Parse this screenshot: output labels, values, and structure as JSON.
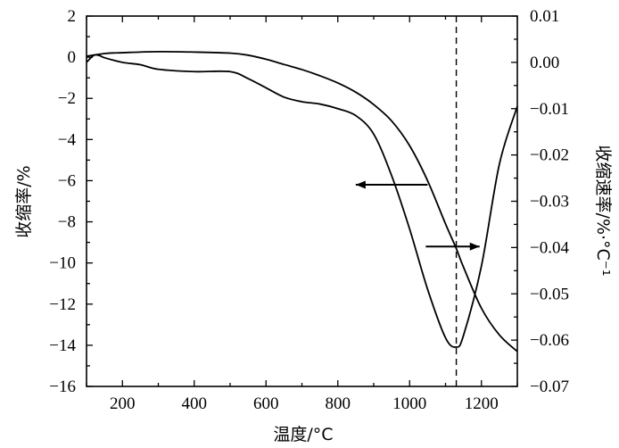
{
  "chart_data": {
    "type": "line",
    "xlabel": "温度/°C",
    "ylabel_left": "收缩率/%",
    "ylabel_right": "收缩速率/%·°C⁻¹",
    "xlim": [
      100,
      1300
    ],
    "ylim_left": [
      -16,
      2
    ],
    "ylim_right": [
      -0.07,
      0.01
    ],
    "x_ticks": [
      200,
      400,
      600,
      800,
      1000,
      1200
    ],
    "x_tick_labels": [
      "200",
      "400",
      "600",
      "800",
      "1000",
      "1200"
    ],
    "y_left_ticks": [
      2,
      0,
      -2,
      -4,
      -6,
      -8,
      -10,
      -12,
      -14,
      -16
    ],
    "y_left_tick_labels": [
      "2",
      "0",
      "−2",
      "−4",
      "−6",
      "−8",
      "−10",
      "−12",
      "−14",
      "−16"
    ],
    "y_right_ticks": [
      0.01,
      0.0,
      -0.01,
      -0.02,
      -0.03,
      -0.04,
      -0.05,
      -0.06,
      -0.07
    ],
    "y_right_tick_labels": [
      "0.01",
      "0.00",
      "−0.01",
      "−0.02",
      "−0.03",
      "−0.04",
      "−0.05",
      "−0.06",
      "−0.07"
    ],
    "reference_line_x": 1130,
    "series": [
      {
        "axis": "left",
        "x": [
          100,
          150,
          200,
          300,
          400,
          500,
          550,
          600,
          650,
          700,
          750,
          800,
          850,
          900,
          950,
          1000,
          1050,
          1100,
          1130,
          1150,
          1200,
          1250,
          1300
        ],
        "values": [
          0.05,
          0.18,
          0.22,
          0.27,
          0.25,
          0.2,
          0.1,
          -0.1,
          -0.35,
          -0.6,
          -0.9,
          -1.25,
          -1.7,
          -2.3,
          -3.1,
          -4.3,
          -6.0,
          -8.1,
          -9.3,
          -10.2,
          -12.2,
          -13.5,
          -14.3
        ]
      },
      {
        "axis": "right",
        "x": [
          100,
          120,
          135,
          150,
          200,
          250,
          300,
          400,
          500,
          550,
          600,
          650,
          700,
          750,
          800,
          850,
          900,
          950,
          1000,
          1050,
          1100,
          1130,
          1150,
          1200,
          1250,
          1300
        ],
        "values": [
          0.0,
          0.0015,
          0.0015,
          0.001,
          0.0,
          -0.0005,
          -0.0015,
          -0.002,
          -0.002,
          -0.0035,
          -0.0055,
          -0.0075,
          -0.0085,
          -0.009,
          -0.01,
          -0.0115,
          -0.0155,
          -0.0245,
          -0.036,
          -0.049,
          -0.0595,
          -0.0615,
          -0.059,
          -0.044,
          -0.022,
          -0.0095
        ]
      }
    ],
    "annotations": [
      {
        "type": "arrow",
        "direction": "left",
        "from_x": 1050,
        "to_x": 850,
        "y_left": -6.2
      },
      {
        "type": "arrow",
        "direction": "right",
        "from_x": 1045,
        "to_x": 1195,
        "y_left": -9.2
      }
    ]
  }
}
